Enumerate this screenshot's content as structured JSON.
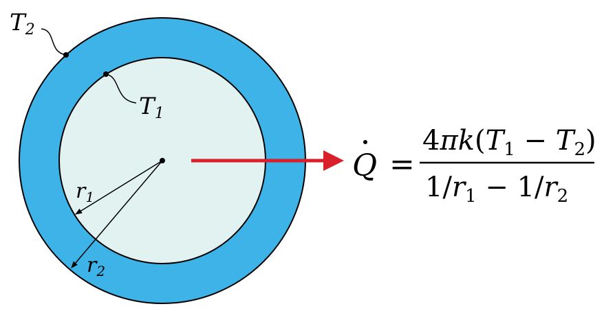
{
  "colors": {
    "outer_shell": "#3db3e8",
    "inner_core": "#e1f2f0",
    "outline": "#000000",
    "heat_arrow": "#d9202a"
  },
  "labels": {
    "outer_temp": {
      "main": "T",
      "sub": "2"
    },
    "inner_temp": {
      "main": "T",
      "sub": "1"
    },
    "inner_radius": {
      "main": "r",
      "sub": "1"
    },
    "outer_radius": {
      "main": "r",
      "sub": "2"
    }
  },
  "equation": {
    "lhs": "Q",
    "equals": "=",
    "numerator": {
      "coef": "4",
      "pi": "π",
      "k": "k",
      "open": "(",
      "t1": "T",
      "t1_sub": "1",
      "minus": " − ",
      "t2": "T",
      "t2_sub": "2",
      "close": ")"
    },
    "denominator": {
      "one_a": "1/",
      "r1": "r",
      "r1_sub": "1",
      "minus": " − ",
      "one_b": "1/",
      "r2": "r",
      "r2_sub": "2"
    }
  },
  "icons": {
    "heat_flow": "right-arrow-icon"
  }
}
